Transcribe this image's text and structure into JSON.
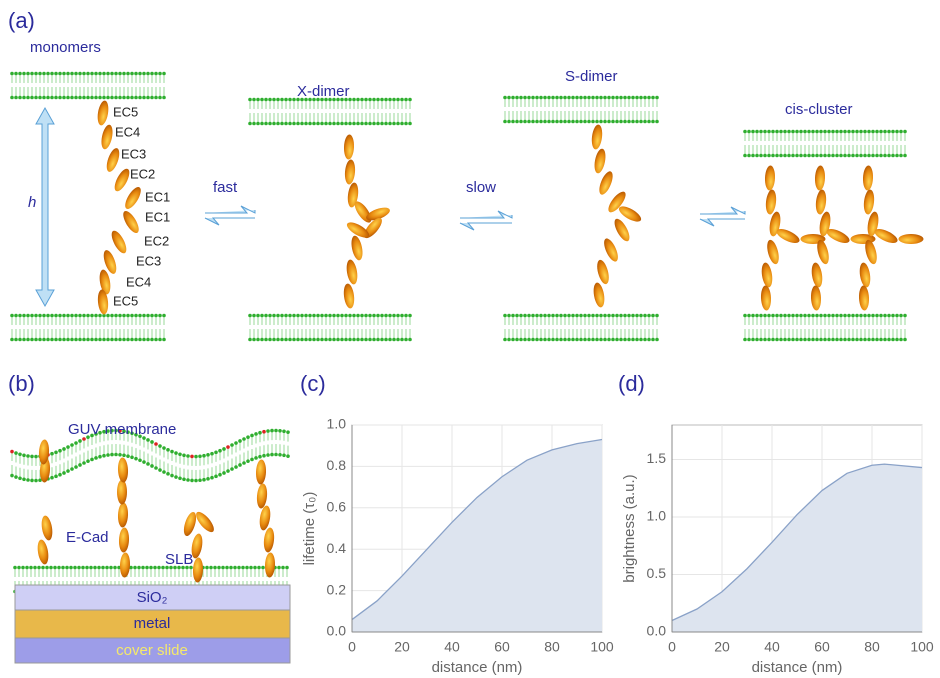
{
  "panel_labels": [
    "(a)",
    "(b)",
    "(c)",
    "(d)"
  ],
  "transition": {
    "states": [
      "monomers",
      "X-dimer",
      "S-dimer",
      "cis-cluster"
    ],
    "rates": [
      "fast",
      "slow"
    ],
    "height_label": "h",
    "domains": [
      "EC5",
      "EC4",
      "EC3",
      "EC2",
      "EC1",
      "EC1",
      "EC2",
      "EC3",
      "EC4",
      "EC5"
    ]
  },
  "setup": {
    "membrane": "GUV membrane",
    "protein": "E-Cad",
    "bilayer": "SLB",
    "layers": [
      "SiO₂",
      "metal",
      "cover slide"
    ]
  },
  "chart_data": [
    {
      "type": "area",
      "xlabel": "distance (nm)",
      "ylabel": "lifetime (τ₀)",
      "color": "#8aa2c8",
      "fill": "#dde4ef",
      "grid": true,
      "x": [
        0,
        10,
        20,
        30,
        40,
        50,
        60,
        70,
        80,
        90,
        100
      ],
      "values": [
        0.06,
        0.15,
        0.27,
        0.4,
        0.53,
        0.65,
        0.75,
        0.83,
        0.88,
        0.91,
        0.93
      ],
      "xlim": [
        0,
        100
      ],
      "ylim": [
        0,
        1.0
      ],
      "xticks": [
        0,
        20,
        40,
        60,
        80,
        100
      ],
      "yticks": [
        {
          "value": 0,
          "label": "0.0"
        },
        0.2,
        0.4,
        0.6,
        0.8,
        {
          "value": 1,
          "label": "1.0"
        }
      ]
    },
    {
      "type": "area",
      "xlabel": "distance (nm)",
      "ylabel": "brightness (a.u.)",
      "color": "#8aa2c8",
      "fill": "#dde4ef",
      "grid": true,
      "x": [
        0,
        10,
        20,
        30,
        40,
        50,
        60,
        70,
        80,
        85,
        90,
        100
      ],
      "values": [
        0.1,
        0.2,
        0.35,
        0.55,
        0.78,
        1.02,
        1.23,
        1.38,
        1.45,
        1.46,
        1.45,
        1.43
      ],
      "xlim": [
        0,
        100
      ],
      "ylim": [
        0,
        1.8
      ],
      "xticks": [
        0,
        20,
        40,
        60,
        80,
        100
      ],
      "yticks": [
        {
          "value": 0,
          "label": "0.0"
        },
        0.5,
        {
          "value": 1,
          "label": "1.0"
        },
        1.5
      ]
    }
  ]
}
